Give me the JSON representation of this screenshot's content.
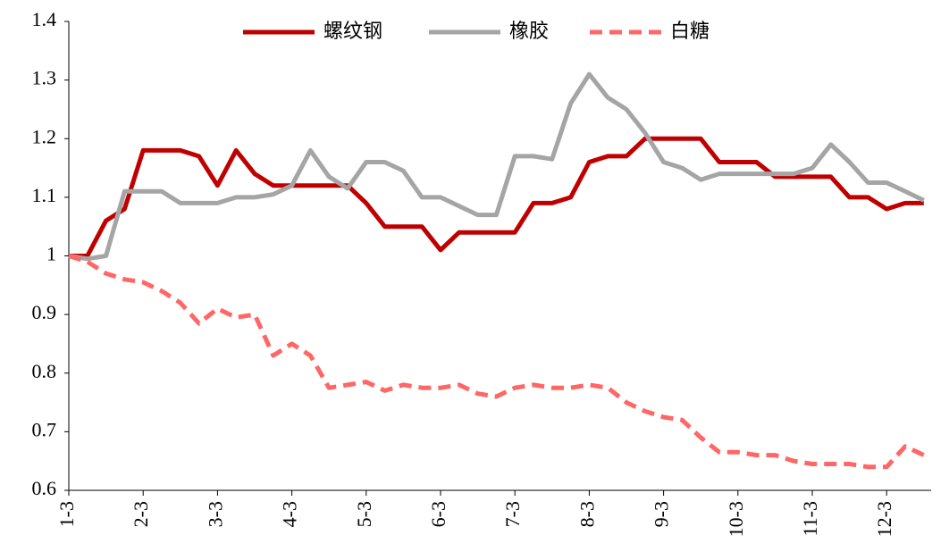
{
  "chart_data": {
    "type": "line",
    "categories": [
      "1-3",
      null,
      null,
      null,
      "2-3",
      null,
      null,
      null,
      "3-3",
      null,
      null,
      null,
      "4-3",
      null,
      null,
      null,
      "5-3",
      null,
      null,
      null,
      "6-3",
      null,
      null,
      null,
      "7-3",
      null,
      null,
      null,
      "8-3",
      null,
      null,
      null,
      "9-3",
      null,
      null,
      null,
      "10-3",
      null,
      null,
      null,
      "11-3",
      null,
      null,
      null,
      "12-3",
      null,
      null
    ],
    "series": [
      {
        "name": "螺纹钢",
        "color": "#c00000",
        "dashed": false,
        "values": [
          1.0,
          1.0,
          1.06,
          1.08,
          1.18,
          1.18,
          1.18,
          1.17,
          1.12,
          1.18,
          1.14,
          1.12,
          1.12,
          1.12,
          1.12,
          1.12,
          1.09,
          1.05,
          1.05,
          1.05,
          1.01,
          1.04,
          1.04,
          1.04,
          1.04,
          1.09,
          1.09,
          1.1,
          1.16,
          1.17,
          1.17,
          1.2,
          1.2,
          1.2,
          1.2,
          1.16,
          1.16,
          1.16,
          1.135,
          1.135,
          1.135,
          1.135,
          1.1,
          1.1,
          1.08,
          1.09,
          1.09
        ]
      },
      {
        "name": "橡胶",
        "color": "#a5a5a5",
        "dashed": false,
        "values": [
          1.0,
          0.995,
          1.0,
          1.11,
          1.11,
          1.11,
          1.09,
          1.09,
          1.09,
          1.1,
          1.1,
          1.105,
          1.12,
          1.18,
          1.135,
          1.115,
          1.16,
          1.16,
          1.145,
          1.1,
          1.1,
          1.085,
          1.07,
          1.07,
          1.17,
          1.17,
          1.165,
          1.26,
          1.31,
          1.27,
          1.25,
          1.21,
          1.16,
          1.15,
          1.13,
          1.14,
          1.14,
          1.14,
          1.14,
          1.14,
          1.15,
          1.19,
          1.16,
          1.125,
          1.125,
          1.11,
          1.095
        ]
      },
      {
        "name": "白糖",
        "color": "#ff6666",
        "dashed": true,
        "values": [
          1.0,
          0.99,
          0.97,
          0.96,
          0.955,
          0.94,
          0.92,
          0.885,
          0.91,
          0.895,
          0.9,
          0.83,
          0.85,
          0.83,
          0.775,
          0.78,
          0.785,
          0.77,
          0.78,
          0.775,
          0.775,
          0.78,
          0.765,
          0.76,
          0.775,
          0.78,
          0.775,
          0.775,
          0.78,
          0.775,
          0.75,
          0.735,
          0.725,
          0.72,
          0.69,
          0.665,
          0.665,
          0.66,
          0.66,
          0.65,
          0.645,
          0.645,
          0.645,
          0.64,
          0.64,
          0.675,
          0.66
        ]
      }
    ],
    "ylim": [
      0.6,
      1.4
    ],
    "yticks": [
      0.6,
      0.7,
      0.8,
      0.9,
      1,
      1.1,
      1.2,
      1.3,
      1.4
    ],
    "grid": false,
    "legend": "top"
  }
}
